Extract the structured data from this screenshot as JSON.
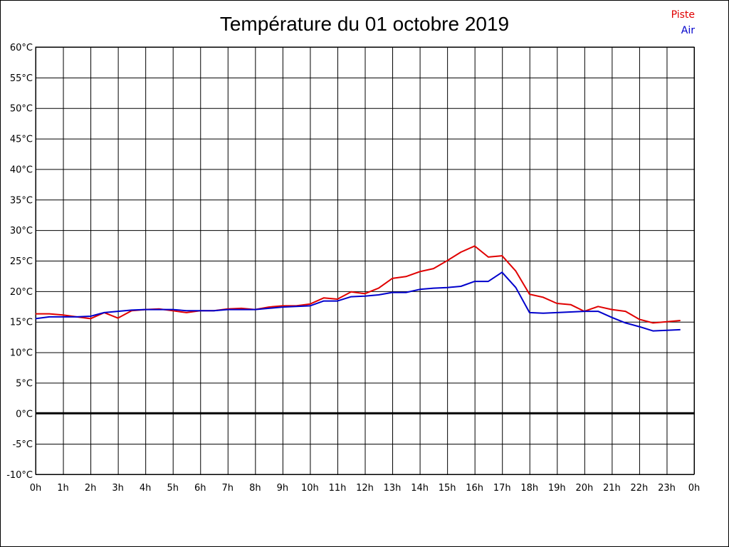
{
  "chart_data": {
    "type": "line",
    "title": "Température du 01 octobre 2019",
    "x_tick_labels": [
      "0h",
      "1h",
      "2h",
      "3h",
      "4h",
      "5h",
      "6h",
      "7h",
      "8h",
      "9h",
      "10h",
      "11h",
      "12h",
      "13h",
      "14h",
      "15h",
      "16h",
      "17h",
      "18h",
      "19h",
      "20h",
      "21h",
      "22h",
      "23h",
      "0h"
    ],
    "y_tick_labels": [
      "60°C",
      "55°C",
      "50°C",
      "45°C",
      "40°C",
      "35°C",
      "30°C",
      "25°C",
      "20°C",
      "15°C",
      "10°C",
      "5°C",
      "0°C",
      "-5°C",
      "-10°C"
    ],
    "xlim": [
      0,
      24
    ],
    "ylim": [
      -10,
      60
    ],
    "y_step": 5,
    "grid": true,
    "legend_position": "top-right",
    "x": [
      0,
      0.5,
      1,
      1.5,
      2,
      2.5,
      3,
      3.5,
      4,
      4.5,
      5,
      5.5,
      6,
      6.5,
      7,
      7.5,
      8,
      8.5,
      9,
      9.5,
      10,
      10.5,
      11,
      11.5,
      12,
      12.5,
      13,
      13.5,
      14,
      14.5,
      15,
      15.5,
      16,
      16.5,
      17,
      17.5,
      18,
      18.5,
      19,
      19.5,
      20,
      20.5,
      21,
      21.5,
      22,
      22.5,
      23,
      23.5
    ],
    "series": [
      {
        "name": "Piste",
        "color": "#e00000",
        "values": [
          16.3,
          16.3,
          16.1,
          15.8,
          15.5,
          16.5,
          15.6,
          16.8,
          17.0,
          17.1,
          16.8,
          16.5,
          16.8,
          16.8,
          17.1,
          17.2,
          17.0,
          17.4,
          17.6,
          17.6,
          17.9,
          18.9,
          18.7,
          19.9,
          19.6,
          20.5,
          22.1,
          22.4,
          23.2,
          23.7,
          25.0,
          26.4,
          27.4,
          25.6,
          25.8,
          23.3,
          19.5,
          19.0,
          18.0,
          17.8,
          16.7,
          17.5,
          17.0,
          16.7,
          15.4,
          14.8,
          15.0,
          15.2
        ]
      },
      {
        "name": "Air",
        "color": "#0000cc",
        "values": [
          15.5,
          15.8,
          15.8,
          15.8,
          15.9,
          16.5,
          16.7,
          16.9,
          17.0,
          17.0,
          17.0,
          16.8,
          16.8,
          16.8,
          17.0,
          17.0,
          17.0,
          17.2,
          17.4,
          17.5,
          17.6,
          18.4,
          18.4,
          19.1,
          19.2,
          19.4,
          19.8,
          19.8,
          20.3,
          20.5,
          20.6,
          20.8,
          21.6,
          21.6,
          23.1,
          20.6,
          16.5,
          16.4,
          16.5,
          16.6,
          16.7,
          16.7,
          15.7,
          14.8,
          14.2,
          13.5,
          13.6,
          13.7
        ]
      }
    ],
    "zero_line_color": "#000000"
  }
}
